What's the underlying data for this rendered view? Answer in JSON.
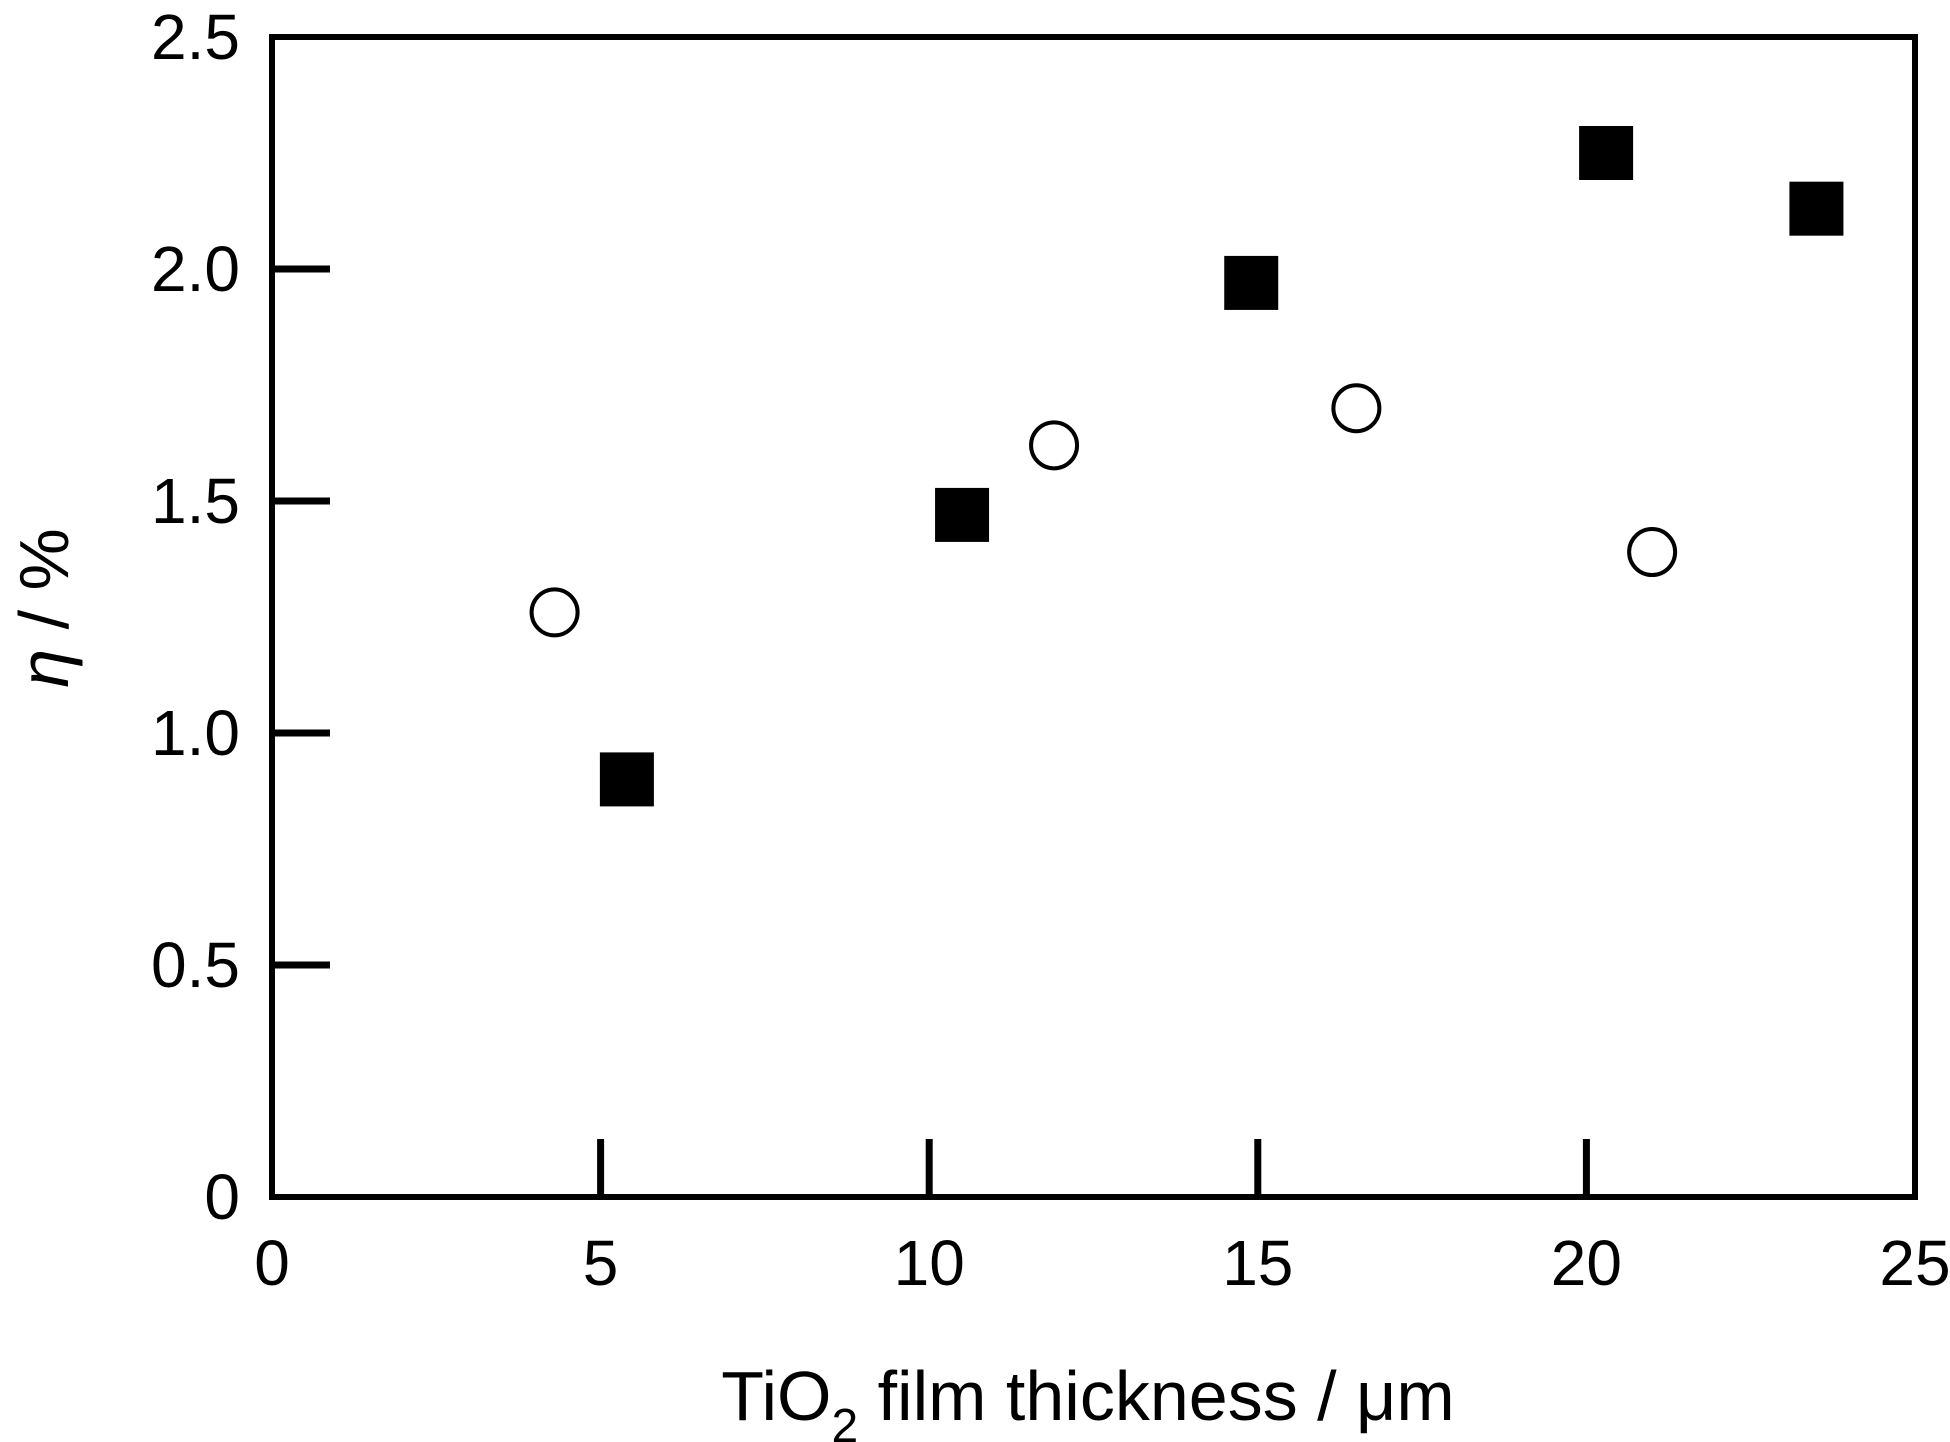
{
  "chart_data": {
    "type": "scatter",
    "xlabel": {
      "main": "TiO",
      "subscript": "2",
      "rest": " film thickness / μm"
    },
    "ylabel": {
      "symbol": "η",
      "rest": " / %"
    },
    "xlim": [
      0,
      25
    ],
    "ylim": [
      0,
      2.5
    ],
    "x_ticks": [
      0,
      5,
      10,
      15,
      20,
      25
    ],
    "x_tick_labels": [
      "0",
      "5",
      "10",
      "15",
      "20",
      "25"
    ],
    "y_ticks": [
      0,
      0.5,
      1.0,
      1.5,
      2.0,
      2.5
    ],
    "y_tick_labels": [
      "0",
      "0.5",
      "1.0",
      "1.5",
      "2.0",
      "2.5"
    ],
    "grid": false,
    "legend": "none",
    "series": [
      {
        "marker": "filled-square",
        "color": "#000000",
        "points": [
          {
            "x": 5.4,
            "y": 0.9
          },
          {
            "x": 10.5,
            "y": 1.47
          },
          {
            "x": 14.9,
            "y": 1.97
          },
          {
            "x": 20.3,
            "y": 2.25
          },
          {
            "x": 23.5,
            "y": 2.13
          }
        ]
      },
      {
        "marker": "open-circle",
        "color": "#000000",
        "points": [
          {
            "x": 4.3,
            "y": 1.26
          },
          {
            "x": 11.9,
            "y": 1.62
          },
          {
            "x": 16.5,
            "y": 1.7
          },
          {
            "x": 21.0,
            "y": 1.39
          }
        ]
      }
    ]
  }
}
